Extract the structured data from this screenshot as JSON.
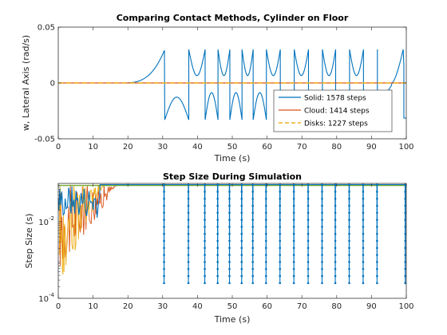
{
  "colors": {
    "background": "#ffffff",
    "axes": "#262626",
    "solid": "#0072BD",
    "cloud": "#D95319",
    "disks": "#EDB120",
    "green": "#77AC30"
  },
  "chart_data": [
    {
      "type": "line",
      "title": "Comparing Contact Methods, Cylinder on Floor",
      "xlabel": "Time (s)",
      "ylabel": "w, Lateral Axis (rad/s)",
      "xlim": [
        0,
        100
      ],
      "ylim": [
        -0.05,
        0.05
      ],
      "xticks": [
        "0",
        "10",
        "20",
        "30",
        "40",
        "50",
        "60",
        "70",
        "80",
        "90",
        "100"
      ],
      "yticks": [
        "-0.05",
        "0",
        "0.05"
      ],
      "grid": false,
      "legend_position": "lower-right",
      "series": [
        {
          "name": "Solid: 1578 steps",
          "style": "solid",
          "color_key": "solid",
          "spikes": [
            30.6,
            37.5,
            42.2,
            45.9,
            49.3,
            52.8,
            56.0,
            59.8,
            63.8,
            67.8,
            71.9,
            75.9,
            79.7,
            83.7,
            87.7,
            91.7
          ],
          "peak_value": 0.03,
          "trough_value": -0.033,
          "end_crossing": 99.3
        },
        {
          "name": "Cloud: 1414 steps",
          "style": "solid",
          "color_key": "cloud",
          "value": 0
        },
        {
          "name": "Disks: 1227 steps",
          "style": "dashed",
          "color_key": "disks",
          "value": 0
        }
      ]
    },
    {
      "type": "line",
      "title": "Step Size During Simulation",
      "xlabel": "Time (s)",
      "ylabel": "Step Size (s)",
      "xlim": [
        0,
        100
      ],
      "ylim": [
        0.0001,
        0.1
      ],
      "yscale": "log",
      "xticks": [
        "0",
        "10",
        "20",
        "30",
        "40",
        "50",
        "60",
        "70",
        "80",
        "90",
        "100"
      ],
      "yticks": [
        {
          "base": "10",
          "exp": "-2",
          "value": 0.01
        },
        {
          "base": "10",
          "exp": "-4",
          "value": 0.0001
        }
      ],
      "max_step": 0.1,
      "min_step_dips": 0.00025,
      "dip_times": [
        30.4,
        37.4,
        42.1,
        45.8,
        49.2,
        52.7,
        55.9,
        59.7,
        63.7,
        67.7,
        71.8,
        75.8,
        79.6,
        83.6,
        87.6,
        91.6,
        99.7
      ]
    }
  ]
}
